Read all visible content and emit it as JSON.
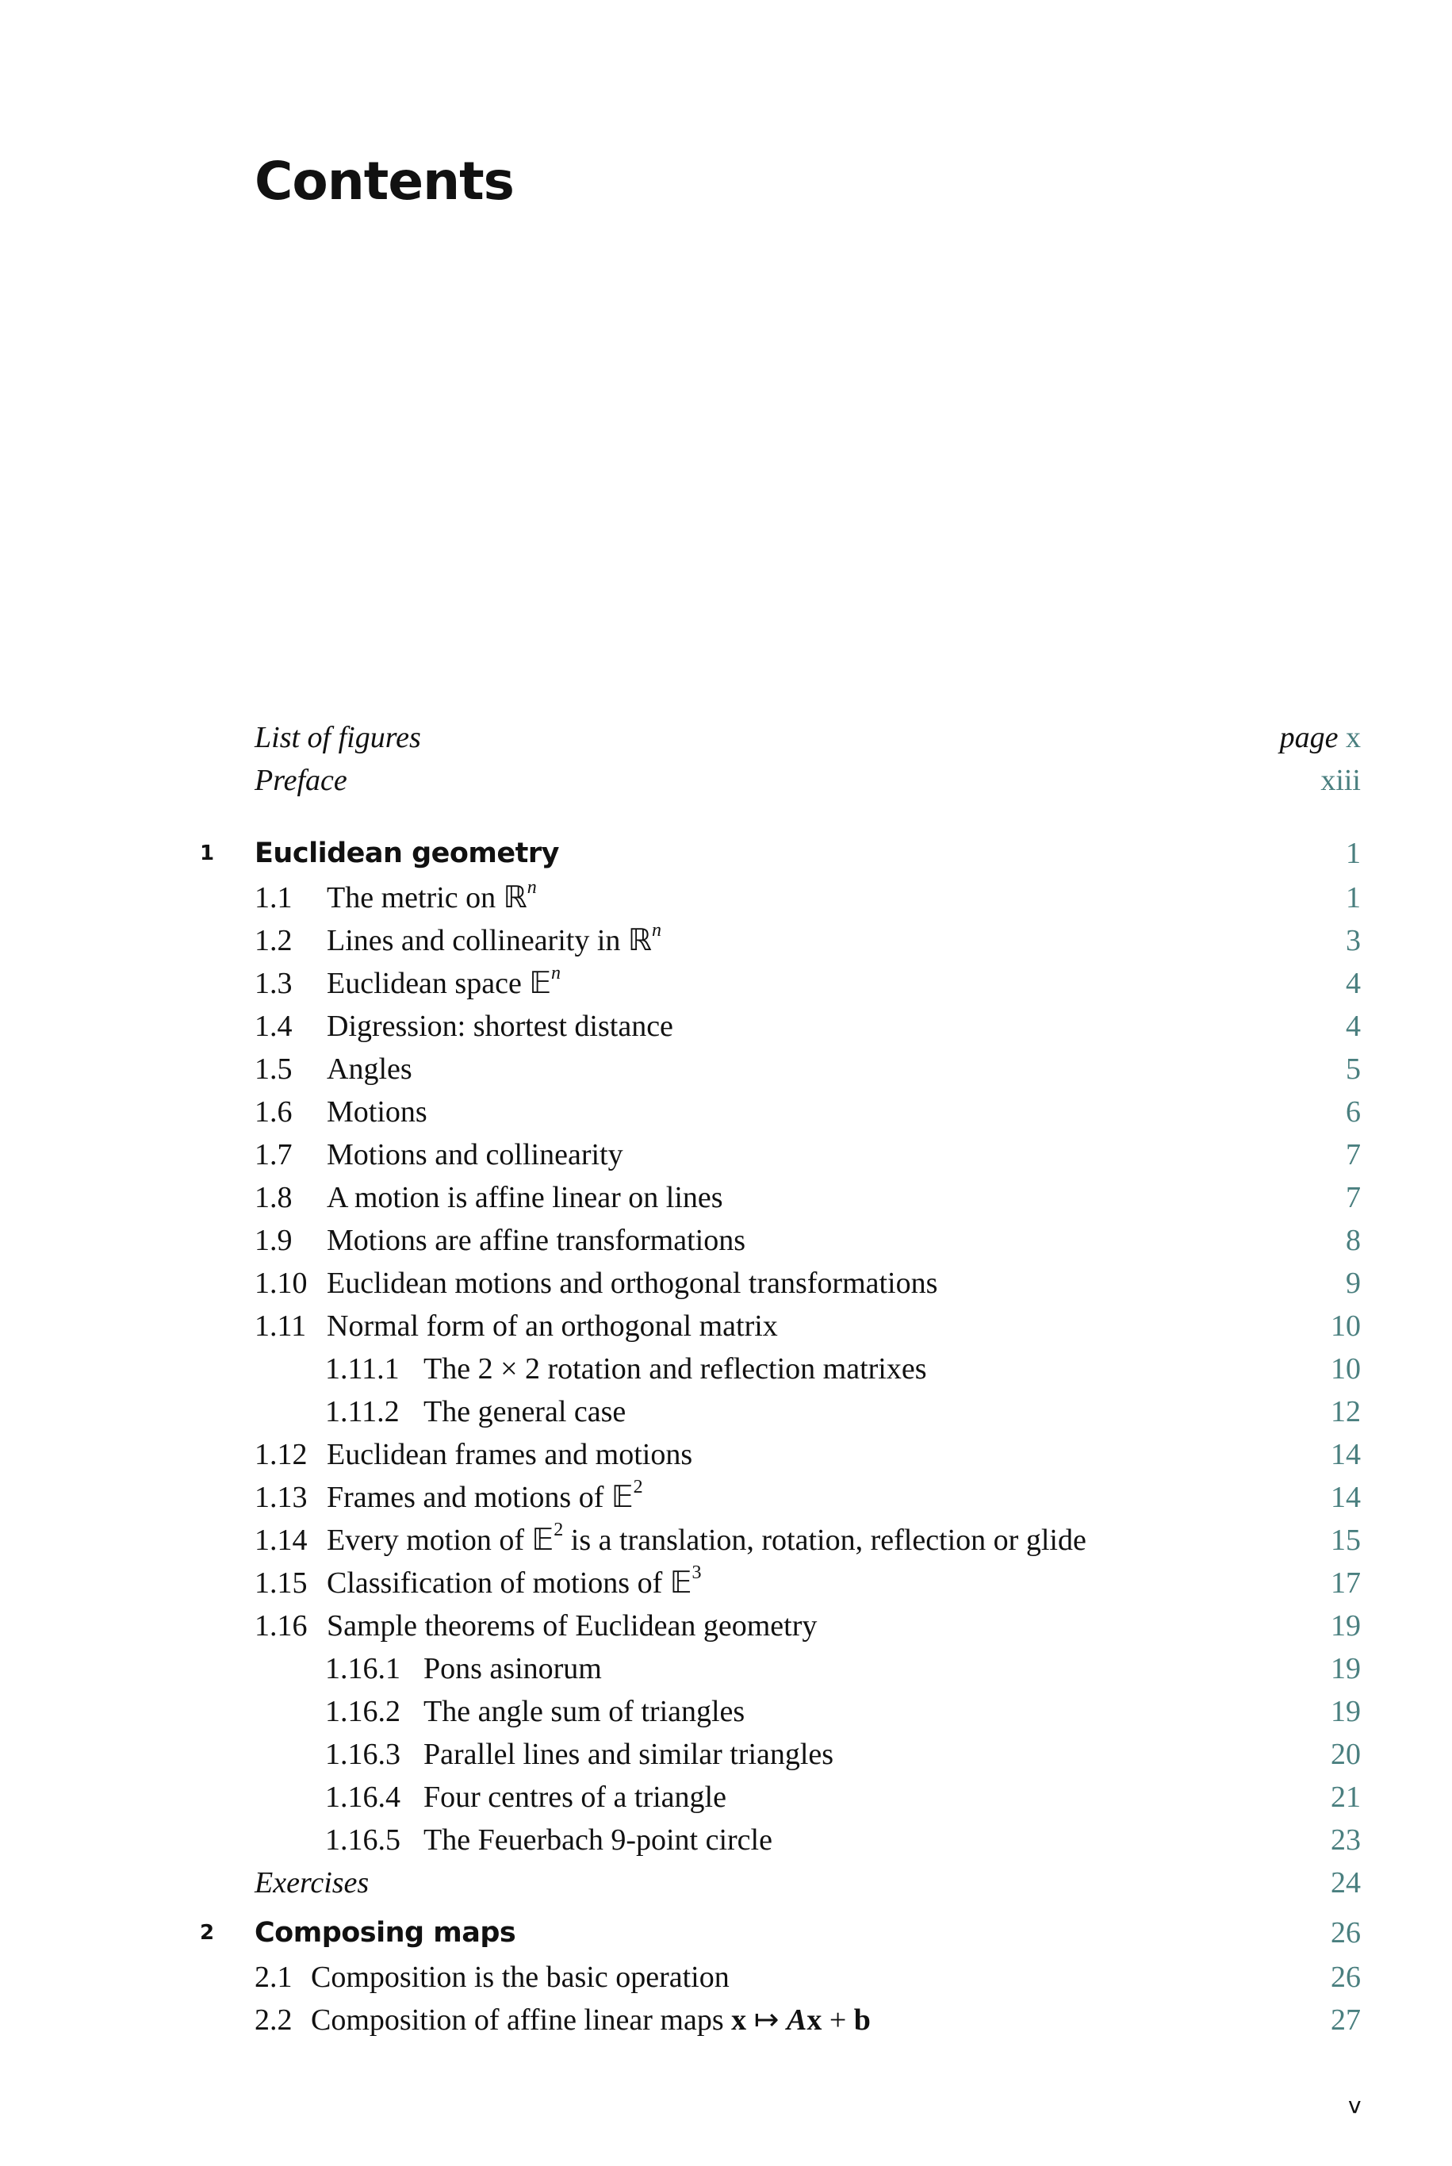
{
  "title": "Contents",
  "page_label": "page",
  "link_color": "#4a7f7f",
  "entries": [
    {
      "kind": "front",
      "title": [
        {
          "t": "List of figures"
        }
      ],
      "page": "x",
      "page_label": true
    },
    {
      "kind": "front",
      "title": [
        {
          "t": "Preface"
        }
      ],
      "page": "xiii"
    },
    {
      "kind": "chapter",
      "num": "1",
      "title": [
        {
          "t": "Euclidean geometry"
        }
      ],
      "page": "1"
    },
    {
      "kind": "section",
      "num": "1.1",
      "title": [
        {
          "t": "The metric on ℝ"
        },
        {
          "t": "n",
          "s": "sup-i"
        }
      ],
      "page": "1"
    },
    {
      "kind": "section",
      "num": "1.2",
      "title": [
        {
          "t": "Lines and collinearity in ℝ"
        },
        {
          "t": "n",
          "s": "sup-i"
        }
      ],
      "page": "3"
    },
    {
      "kind": "section",
      "num": "1.3",
      "title": [
        {
          "t": "Euclidean space 𝔼"
        },
        {
          "t": "n",
          "s": "sup-i"
        }
      ],
      "page": "4"
    },
    {
      "kind": "section",
      "num": "1.4",
      "title": [
        {
          "t": "Digression: shortest distance"
        }
      ],
      "page": "4"
    },
    {
      "kind": "section",
      "num": "1.5",
      "title": [
        {
          "t": "Angles"
        }
      ],
      "page": "5"
    },
    {
      "kind": "section",
      "num": "1.6",
      "title": [
        {
          "t": "Motions"
        }
      ],
      "page": "6"
    },
    {
      "kind": "section",
      "num": "1.7",
      "title": [
        {
          "t": "Motions and collinearity"
        }
      ],
      "page": "7"
    },
    {
      "kind": "section",
      "num": "1.8",
      "title": [
        {
          "t": "A motion is affine linear on lines"
        }
      ],
      "page": "7"
    },
    {
      "kind": "section",
      "num": "1.9",
      "title": [
        {
          "t": "Motions are affine transformations"
        }
      ],
      "page": "8"
    },
    {
      "kind": "section",
      "num": "1.10",
      "title": [
        {
          "t": "Euclidean motions and orthogonal transformations"
        }
      ],
      "page": "9"
    },
    {
      "kind": "section",
      "num": "1.11",
      "title": [
        {
          "t": "Normal form of an orthogonal matrix"
        }
      ],
      "page": "10"
    },
    {
      "kind": "subsection",
      "num": "1.11.1",
      "title": [
        {
          "t": "The 2 × 2 rotation and reflection matrixes"
        }
      ],
      "page": "10"
    },
    {
      "kind": "subsection",
      "num": "1.11.2",
      "title": [
        {
          "t": "The general case"
        }
      ],
      "page": "12"
    },
    {
      "kind": "section",
      "num": "1.12",
      "title": [
        {
          "t": "Euclidean frames and motions"
        }
      ],
      "page": "14"
    },
    {
      "kind": "section",
      "num": "1.13",
      "title": [
        {
          "t": "Frames and motions of 𝔼"
        },
        {
          "t": "2",
          "s": "sup"
        }
      ],
      "page": "14"
    },
    {
      "kind": "section",
      "num": "1.14",
      "title": [
        {
          "t": "Every motion of 𝔼"
        },
        {
          "t": "2",
          "s": "sup"
        },
        {
          "t": " is a translation, rotation, reflection or glide"
        }
      ],
      "page": "15"
    },
    {
      "kind": "section",
      "num": "1.15",
      "title": [
        {
          "t": "Classification of motions of 𝔼"
        },
        {
          "t": "3",
          "s": "sup"
        }
      ],
      "page": "17"
    },
    {
      "kind": "section",
      "num": "1.16",
      "title": [
        {
          "t": "Sample theorems of Euclidean geometry"
        }
      ],
      "page": "19"
    },
    {
      "kind": "subsection",
      "num": "1.16.1",
      "title": [
        {
          "t": "Pons asinorum"
        }
      ],
      "page": "19"
    },
    {
      "kind": "subsection",
      "num": "1.16.2",
      "title": [
        {
          "t": "The angle sum of triangles"
        }
      ],
      "page": "19"
    },
    {
      "kind": "subsection",
      "num": "1.16.3",
      "title": [
        {
          "t": "Parallel lines and similar triangles"
        }
      ],
      "page": "20"
    },
    {
      "kind": "subsection",
      "num": "1.16.4",
      "title": [
        {
          "t": "Four centres of a triangle"
        }
      ],
      "page": "21"
    },
    {
      "kind": "subsection",
      "num": "1.16.5",
      "title": [
        {
          "t": "The Feuerbach 9-point circle"
        }
      ],
      "page": "23"
    },
    {
      "kind": "front",
      "title": [
        {
          "t": "Exercises"
        }
      ],
      "page": "24"
    },
    {
      "kind": "chapter",
      "num": "2",
      "title": [
        {
          "t": "Composing maps"
        }
      ],
      "page": "26"
    },
    {
      "kind": "section2",
      "num": "2.1",
      "title": [
        {
          "t": "Composition is the basic operation"
        }
      ],
      "page": "26"
    },
    {
      "kind": "section2",
      "num": "2.2",
      "title": [
        {
          "t": "Composition of affine linear maps "
        },
        {
          "t": "x",
          "s": "b"
        },
        {
          "t": " ↦ "
        },
        {
          "t": "A",
          "s": "bi"
        },
        {
          "t": "x",
          "s": "b"
        },
        {
          "t": " + "
        },
        {
          "t": "b",
          "s": "b"
        }
      ],
      "page": "27"
    }
  ],
  "folio": "v"
}
